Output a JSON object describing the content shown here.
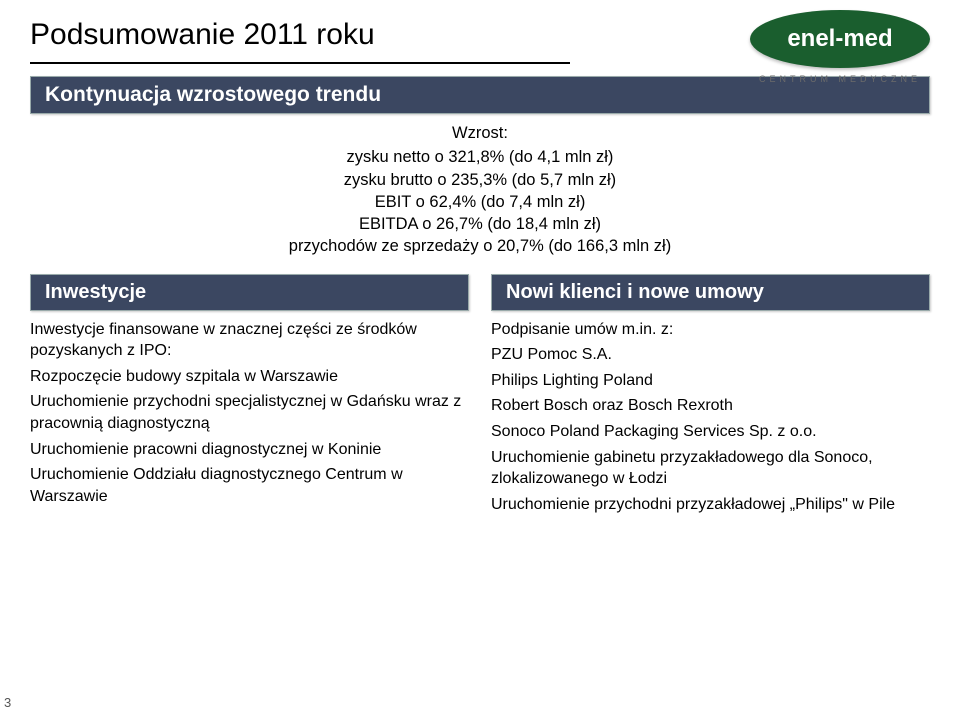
{
  "title": "Podsumowanie 2011 roku",
  "logo": {
    "brand": "enel-med",
    "subtitle": "CENTRUM MEDYCZNE"
  },
  "banner_main": "Kontynuacja wzrostowego trendu",
  "growth": {
    "heading": "Wzrost:",
    "lines": [
      "zysku netto o 321,8% (do 4,1 mln zł)",
      "zysku brutto o 235,3% (do 5,7 mln zł)",
      "EBIT o 62,4% (do 7,4 mln zł)",
      "EBITDA o 26,7% (do 18,4 mln zł)",
      "przychodów ze sprzedaży o 20,7% (do 166,3 mln zł)"
    ]
  },
  "left": {
    "banner": "Inwestycje",
    "lead": "Inwestycje  finansowane w znacznej części ze środków pozyskanych z IPO:",
    "items": [
      "Rozpoczęcie budowy szpitala w Warszawie",
      "Uruchomienie przychodni specjalistycznej w Gdańsku wraz z pracownią diagnostyczną",
      "Uruchomienie pracowni diagnostycznej w Koninie",
      "Uruchomienie Oddziału diagnostycznego Centrum w Warszawie"
    ]
  },
  "right": {
    "banner": "Nowi klienci i nowe umowy",
    "lead": "Podpisanie umów  m.in. z:",
    "items": [
      "PZU Pomoc S.A.",
      "Philips Lighting Poland",
      "Robert Bosch oraz Bosch Rexroth",
      "Sonoco Poland Packaging Services Sp. z o.o.",
      "Uruchomienie gabinetu przyzakładowego dla Sonoco, zlokalizowanego w Łodzi",
      "Uruchomienie przychodni przyzakładowej „Philips\" w Pile"
    ]
  },
  "page_number": "3",
  "colors": {
    "banner_bg": "#3b4761",
    "logo_bg": "#1a5e2e"
  }
}
